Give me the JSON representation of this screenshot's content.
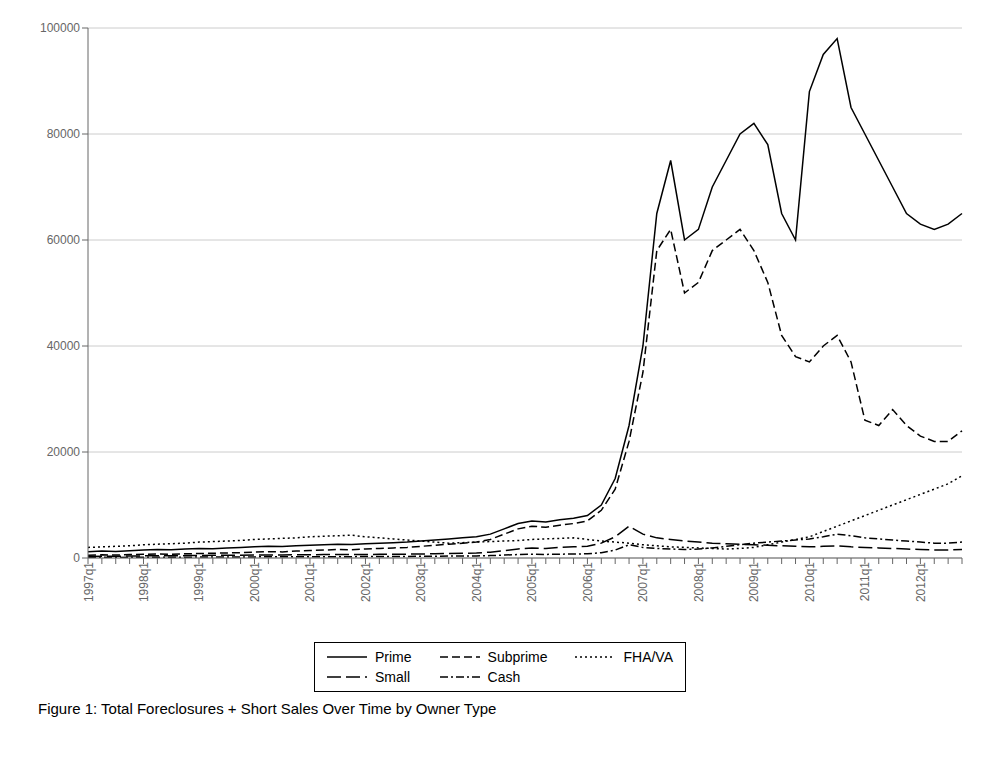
{
  "chart_data": {
    "type": "line",
    "title": "Figure 1:  Total Foreclosures + Short Sales Over Time by Owner Type",
    "categories": [
      "1997q1",
      null,
      null,
      null,
      "1998q1",
      null,
      null,
      null,
      "1999q1",
      null,
      null,
      null,
      "2000q1",
      null,
      null,
      null,
      "2001q1",
      null,
      null,
      null,
      "2002q1",
      null,
      null,
      null,
      "2003q1",
      null,
      null,
      null,
      "2004q1",
      null,
      null,
      null,
      "2005q1",
      null,
      null,
      null,
      "2006q1",
      null,
      null,
      null,
      "2007q1",
      null,
      null,
      null,
      "2008q1",
      null,
      null,
      null,
      "2009q1",
      null,
      null,
      null,
      "2010q1",
      null,
      null,
      null,
      "2011q1",
      null,
      null,
      null,
      "2012q1",
      null,
      null,
      null
    ],
    "ylim": [
      0,
      100000
    ],
    "yticks": [
      0,
      20000,
      40000,
      60000,
      80000,
      100000
    ],
    "grid": true,
    "series": [
      {
        "name": "Prime",
        "color": "#000000",
        "line_style": "solid",
        "values": [
          1200,
          1300,
          1250,
          1350,
          1500,
          1600,
          1550,
          1700,
          1800,
          1750,
          1900,
          2000,
          2100,
          2200,
          2150,
          2300,
          2400,
          2500,
          2600,
          2550,
          2700,
          2800,
          2900,
          3000,
          3200,
          3400,
          3600,
          3800,
          4000,
          4500,
          5500,
          6500,
          7000,
          6800,
          7200,
          7500,
          8000,
          10000,
          15000,
          25000,
          40000,
          65000,
          75000,
          60000,
          62000,
          70000,
          75000,
          80000,
          82000,
          78000,
          65000,
          60000,
          88000,
          95000,
          98000,
          85000,
          80000,
          75000,
          70000,
          65000,
          63000,
          62000,
          63000,
          65000
        ]
      },
      {
        "name": "Subprime",
        "color": "#000000",
        "line_style": "dashed",
        "values": [
          500,
          600,
          550,
          650,
          700,
          750,
          700,
          800,
          850,
          900,
          950,
          1000,
          1100,
          1200,
          1150,
          1300,
          1400,
          1500,
          1600,
          1550,
          1700,
          1800,
          1900,
          2000,
          2200,
          2400,
          2600,
          2800,
          3000,
          3500,
          4500,
          5500,
          6000,
          5800,
          6200,
          6500,
          7000,
          9000,
          13000,
          22000,
          35000,
          58000,
          62000,
          50000,
          52000,
          58000,
          60000,
          62000,
          58000,
          52000,
          42000,
          38000,
          37000,
          40000,
          42000,
          37000,
          26000,
          25000,
          28000,
          25000,
          23000,
          22000,
          22000,
          24000
        ]
      },
      {
        "name": "FHA/VA",
        "color": "#000000",
        "line_style": "dotted",
        "values": [
          2000,
          2100,
          2200,
          2300,
          2500,
          2600,
          2700,
          2800,
          3000,
          3100,
          3200,
          3300,
          3500,
          3600,
          3700,
          3800,
          4000,
          4100,
          4200,
          4300,
          4000,
          3800,
          3600,
          3400,
          3200,
          3000,
          2800,
          2900,
          3000,
          3100,
          3200,
          3300,
          3500,
          3600,
          3700,
          3800,
          3500,
          3200,
          3000,
          2800,
          2500,
          2300,
          2100,
          2000,
          1900,
          1800,
          1700,
          1800,
          2000,
          2500,
          3000,
          3500,
          4000,
          5000,
          6000,
          7000,
          8000,
          9000,
          10000,
          11000,
          12000,
          13000,
          14000,
          15500
        ]
      },
      {
        "name": "Small",
        "color": "#000000",
        "line_style": "longdash",
        "values": [
          300,
          350,
          320,
          380,
          400,
          420,
          410,
          450,
          480,
          500,
          520,
          540,
          560,
          580,
          570,
          600,
          620,
          640,
          660,
          650,
          670,
          690,
          710,
          730,
          750,
          800,
          850,
          900,
          950,
          1100,
          1400,
          1700,
          1900,
          1800,
          2000,
          2100,
          2200,
          2800,
          4000,
          6000,
          4500,
          3800,
          3500,
          3200,
          3000,
          2800,
          2700,
          2600,
          2500,
          2400,
          2300,
          2200,
          2100,
          2200,
          2300,
          2100,
          2000,
          1900,
          1800,
          1700,
          1600,
          1500,
          1500,
          1600
        ]
      },
      {
        "name": "Cash",
        "color": "#000000",
        "line_style": "dashdot",
        "values": [
          100,
          120,
          110,
          130,
          140,
          150,
          145,
          160,
          170,
          180,
          190,
          200,
          210,
          220,
          215,
          230,
          240,
          250,
          260,
          255,
          270,
          280,
          290,
          300,
          320,
          340,
          360,
          380,
          400,
          450,
          550,
          650,
          700,
          680,
          720,
          750,
          800,
          1000,
          1500,
          2500,
          2000,
          1800,
          1700,
          1600,
          1700,
          1900,
          2200,
          2500,
          2800,
          3000,
          3200,
          3400,
          3600,
          4000,
          4500,
          4200,
          3800,
          3600,
          3400,
          3200,
          3000,
          2800,
          2800,
          3000
        ]
      }
    ]
  }
}
